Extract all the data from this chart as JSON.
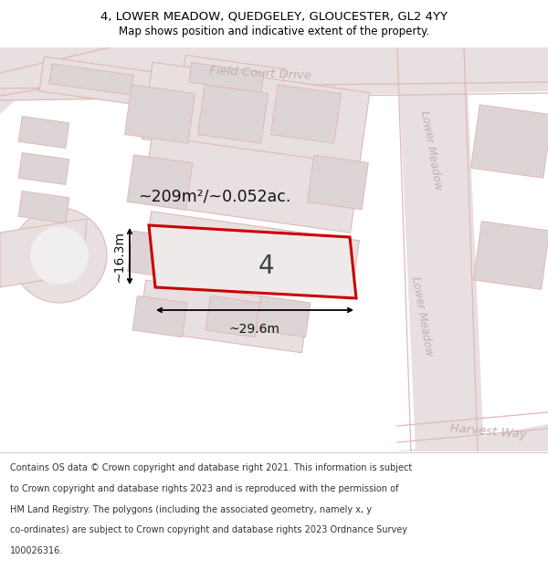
{
  "title": "4, LOWER MEADOW, QUEDGELEY, GLOUCESTER, GL2 4YY",
  "subtitle": "Map shows position and indicative extent of the property.",
  "footer_lines": [
    "Contains OS data © Crown copyright and database right 2021. This information is subject",
    "to Crown copyright and database rights 2023 and is reproduced with the permission of",
    "HM Land Registry. The polygons (including the associated geometry, namely x, y",
    "co-ordinates) are subject to Crown copyright and database rights 2023 Ordnance Survey",
    "100026316."
  ],
  "map_bg": "#f0eeee",
  "road_fill": "#e8e0e0",
  "road_edge": "#e0b8b8",
  "bld_fill": "#ddd5d5",
  "bld_edge": "#e0b8b8",
  "prop_fill": "#eeeaea",
  "prop_edge": "#cc0000",
  "street_color": "#c0b0b0",
  "dim_color": "#222222",
  "area_text": "~209m²/~0.052ac.",
  "prop_label": "4",
  "dim_w": "~29.6m",
  "dim_h": "~16.3m",
  "title_fs": 9.5,
  "subtitle_fs": 8.5,
  "footer_fs": 7.0,
  "street_fs": 9.5,
  "area_fs": 12.5,
  "prop_fs": 20,
  "dim_fs": 10
}
